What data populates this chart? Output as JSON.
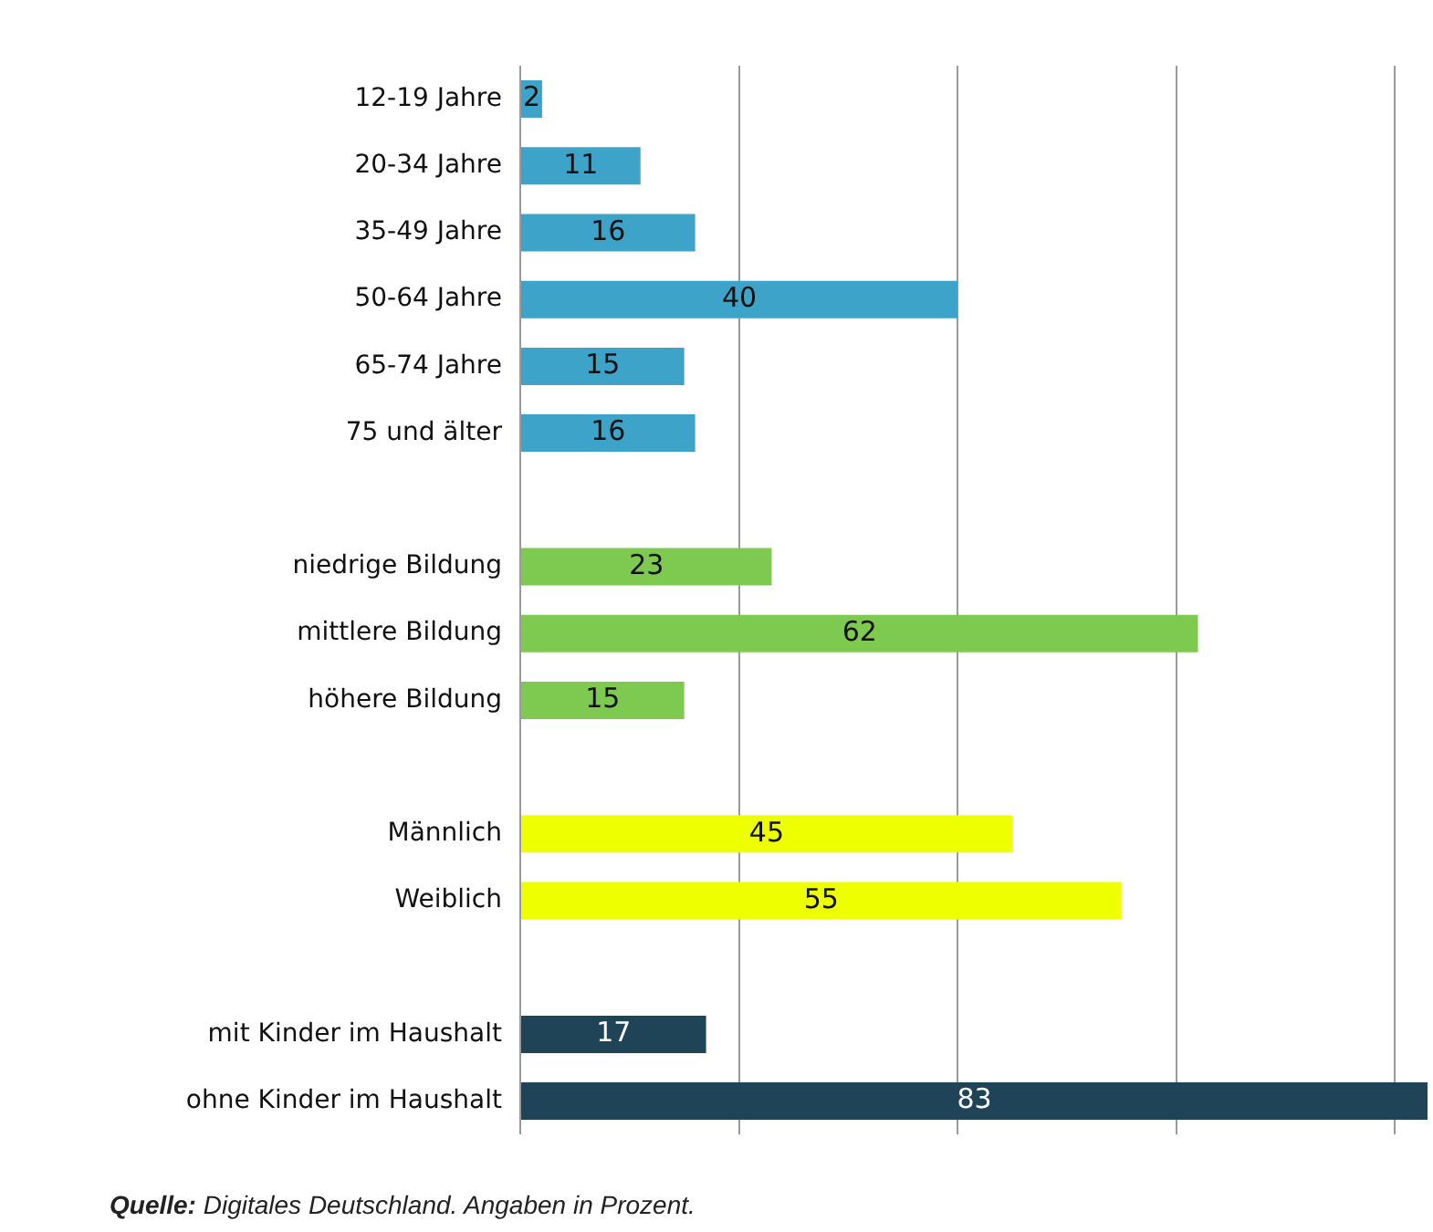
{
  "chart_data": {
    "type": "bar",
    "orientation": "horizontal",
    "categories": [
      "12-19 Jahre",
      "20-34 Jahre",
      "35-49 Jahre",
      "50-64 Jahre",
      "65-74 Jahre",
      "75 und älter",
      null,
      "niedrige Bildung",
      "mittlere Bildung",
      "höhere Bildung",
      null,
      "Männlich",
      "Weiblich",
      null,
      "mit Kinder im Haushalt",
      "ohne Kinder im Haushalt"
    ],
    "values": [
      2,
      11,
      16,
      40,
      15,
      16,
      null,
      23,
      62,
      15,
      null,
      45,
      55,
      null,
      17,
      83
    ],
    "colors": [
      "#3ea3c9",
      "#3ea3c9",
      "#3ea3c9",
      "#3ea3c9",
      "#3ea3c9",
      "#3ea3c9",
      null,
      "#7ec94f",
      "#7ec94f",
      "#7ec94f",
      null,
      "#eeff00",
      "#eeff00",
      null,
      "#1f4457",
      "#1f4457"
    ],
    "xlim": [
      0,
      83
    ],
    "xticks": [
      {
        "value": 0,
        "label": null
      },
      {
        "value": 20,
        "label": null
      },
      {
        "value": 40,
        "label": null
      },
      {
        "value": 60,
        "label": null
      },
      {
        "value": 80,
        "label": null
      }
    ],
    "tick_labels": "y",
    "grid": "x",
    "legend": false,
    "data_labels": true,
    "annotations": [
      "Quelle: Digitales Deutschland. Angaben in Prozent."
    ]
  }
}
